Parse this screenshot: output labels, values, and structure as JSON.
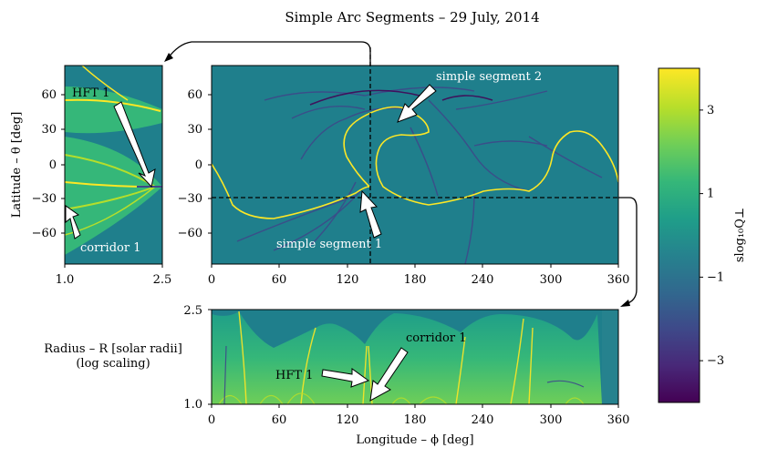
{
  "title": "Simple Arc Segments – 29 July, 2014",
  "colors": {
    "viridis": [
      "#440154",
      "#482878",
      "#3e4989",
      "#31688e",
      "#26828e",
      "#1f9e89",
      "#35b779",
      "#6ece58",
      "#b5de2b",
      "#fde725"
    ],
    "field": "#1f7f8c",
    "arc": "#fde725",
    "arrow_fill": "#ffffff",
    "axes": "#000000"
  },
  "chart_data": [
    {
      "id": "side-panel",
      "type": "heatmap",
      "xlabel": "",
      "ylabel": "Latitude – θ [deg]",
      "xlim": [
        1.0,
        2.5
      ],
      "ylim": [
        -90,
        90
      ],
      "xticks": [
        "1.0",
        "2.5"
      ],
      "yticks": [
        "60",
        "30",
        "0",
        "−30",
        "−60"
      ],
      "annotations": [
        "HFT 1",
        "corridor 1"
      ]
    },
    {
      "id": "main-panel",
      "type": "heatmap",
      "xlabel": "",
      "ylabel": "",
      "xlim": [
        0,
        360
      ],
      "ylim": [
        -90,
        90
      ],
      "xticks": [
        "0",
        "60",
        "120",
        "180",
        "240",
        "300",
        "360"
      ],
      "yticks": [
        "60",
        "30",
        "0",
        "−30",
        "−60"
      ],
      "annotations": [
        "simple segment 2",
        "simple segment 1"
      ],
      "cut_longitude": 140,
      "cut_latitude": -30
    },
    {
      "id": "bottom-panel",
      "type": "heatmap",
      "xlabel": "Longitude – ϕ [deg]",
      "ylabel": "Radius – R [solar radii]",
      "ylabel_note": "(log scaling)",
      "xlim": [
        0,
        360
      ],
      "ylim": [
        1.0,
        2.5
      ],
      "xticks": [
        "0",
        "60",
        "120",
        "180",
        "240",
        "300",
        "360"
      ],
      "yticks": [
        "2.5",
        "1.0"
      ],
      "annotations": [
        "corridor 1",
        "HFT 1"
      ]
    },
    {
      "id": "colorbar",
      "type": "heatmap",
      "label": "slog₁₀Q⊥",
      "ticks": [
        "3",
        "1",
        "−1",
        "−3"
      ],
      "tick_values": [
        3,
        1,
        -1,
        -3
      ],
      "range": [
        -4,
        4
      ]
    }
  ]
}
